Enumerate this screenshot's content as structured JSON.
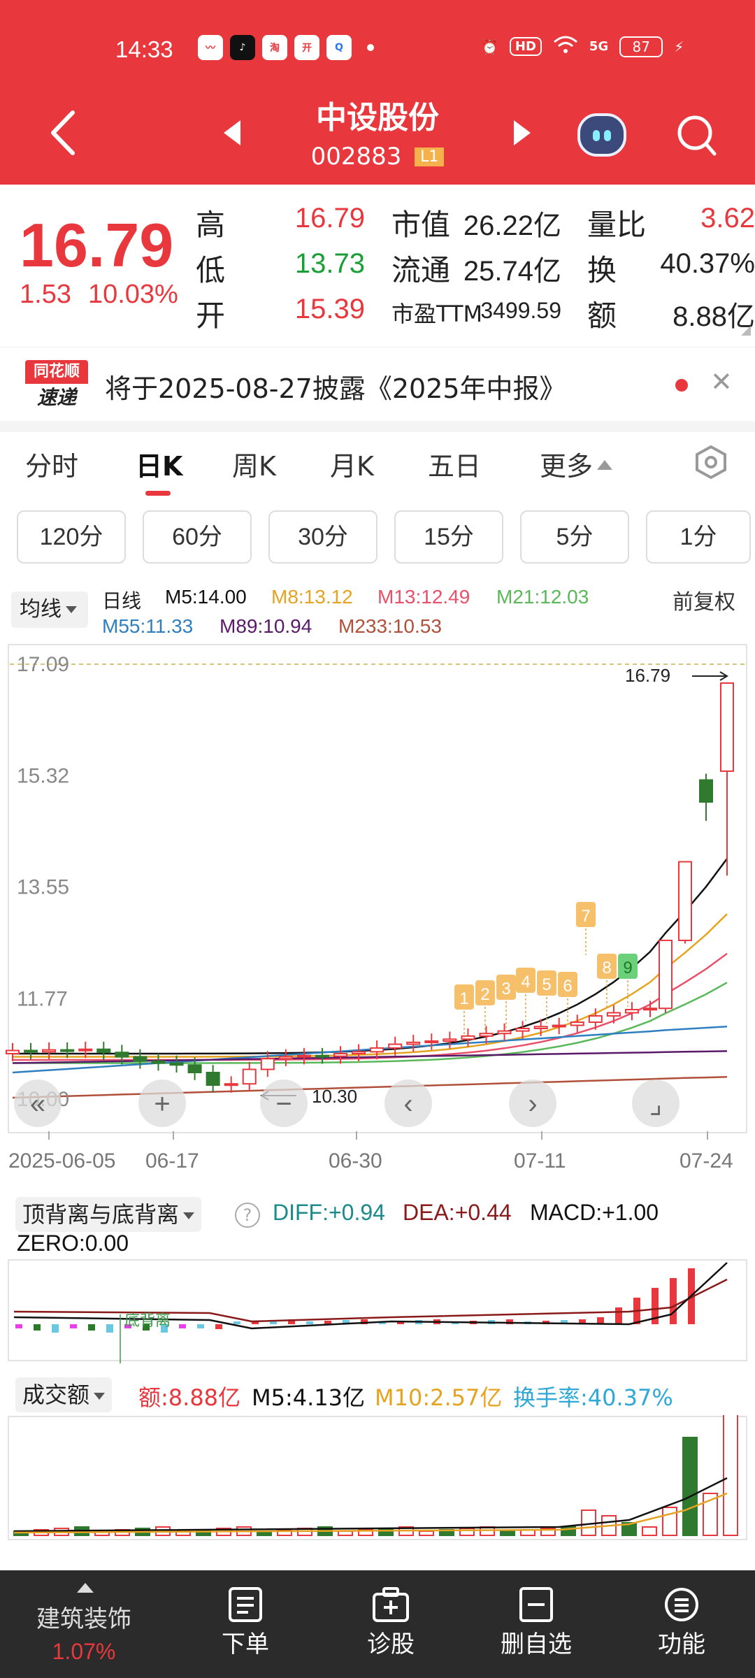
{
  "status_bar": {
    "time": "14:33",
    "app_icons": [
      "stock-chart-icon",
      "tiktok-icon",
      "taobao-icon",
      "kaipan-icon",
      "search-app-icon"
    ],
    "hd_label": "HD",
    "network": "5G",
    "battery": "87"
  },
  "header": {
    "stock_name": "中设股份",
    "stock_code": "002883",
    "level_badge": "L1"
  },
  "quote": {
    "price": "16.79",
    "change": "1.53",
    "change_pct": "10.03%",
    "rows": [
      {
        "l1": "高",
        "v1": "16.79",
        "l2": "市值",
        "v2": "26.22亿",
        "l3": "量比",
        "v3": "3.62"
      },
      {
        "l1": "低",
        "v1": "13.73",
        "l2": "流通",
        "v2": "25.74亿",
        "l3": "换",
        "v3": "40.37%"
      },
      {
        "l1": "开",
        "v1": "15.39",
        "l2": "市盈TTM",
        "v2": "3499.59",
        "l3": "额",
        "v3": "8.88亿"
      }
    ]
  },
  "banner": {
    "logo_top": "同花顺",
    "logo_bottom": "速递",
    "text": "将于2025-08-27披露《2025年中报》"
  },
  "tabs": [
    "分时",
    "日K",
    "周K",
    "月K",
    "五日",
    "更多"
  ],
  "active_tab": "日K",
  "minute_buttons": [
    "120分",
    "60分",
    "30分",
    "15分",
    "5分",
    "1分"
  ],
  "ma_legend": {
    "selector": "均线",
    "period": "日线",
    "fq": "前复权",
    "items": [
      {
        "label": "M5:14.00",
        "color": "#111111"
      },
      {
        "label": "M8:13.12",
        "color": "#e6a321"
      },
      {
        "label": "M13:12.49",
        "color": "#e8506a"
      },
      {
        "label": "M21:12.03",
        "color": "#5ab85a"
      },
      {
        "label": "M55:11.33",
        "color": "#2f7fc0"
      },
      {
        "label": "M89:10.94",
        "color": "#5a1a6a"
      },
      {
        "label": "M233:10.53",
        "color": "#b0503a"
      }
    ]
  },
  "kline": {
    "price_labels": [
      "17.09",
      "15.32",
      "13.55",
      "11.77",
      "10.00"
    ],
    "high_marker": "16.79",
    "low_marker": "10.30",
    "date_labels": [
      "2025-06-05",
      "06-17",
      "06-30",
      "07-11",
      "07-24"
    ],
    "signal_tags": [
      "1",
      "2",
      "3",
      "4",
      "5",
      "6",
      "7",
      "8",
      "9"
    ],
    "signal_colors": {
      "orange": "#f6c06a",
      "green": "#6ccf7a"
    }
  },
  "chart_data": [
    {
      "type": "candlestick",
      "title": "日K",
      "ylim": [
        10.0,
        17.09
      ],
      "y_ticks": [
        17.09,
        15.32,
        13.55,
        11.77,
        10.0
      ],
      "x_ticks": [
        "2025-06-05",
        "06-17",
        "06-30",
        "07-11",
        "07-24"
      ],
      "series": [
        {
          "name": "K线",
          "last_bar": {
            "date": "07-24",
            "open": 15.39,
            "high": 16.79,
            "low": 13.73,
            "close": 16.79
          }
        },
        {
          "name": "M5",
          "last": 14.0
        },
        {
          "name": "M8",
          "last": 13.12
        },
        {
          "name": "M13",
          "last": 12.49
        },
        {
          "name": "M21",
          "last": 12.03
        },
        {
          "name": "M55",
          "last": 11.33
        },
        {
          "name": "M89",
          "last": 10.94
        },
        {
          "name": "M233",
          "last": 10.53
        }
      ],
      "annotations": {
        "period_high": 16.79,
        "period_low": 10.3
      }
    },
    {
      "type": "bar",
      "title": "顶背离与底背离",
      "indicators": {
        "DIFF": "+0.94",
        "DEA": "+0.44",
        "MACD": "+1.00",
        "ZERO": "0.00"
      }
    },
    {
      "type": "bar",
      "title": "成交额",
      "indicators": {
        "额": "8.88亿",
        "M5": "4.13亿",
        "M10": "2.57亿",
        "换手率": "40.37%"
      }
    }
  ],
  "macd": {
    "selector": "顶背离与底背离",
    "diff": "DIFF:+0.94",
    "dea": "DEA:+0.44",
    "macd": "MACD:+1.00",
    "zero": "ZERO:0.00",
    "bottom_div_label": "底背离"
  },
  "volume": {
    "selector": "成交额",
    "amount": "额:8.88亿",
    "m5": "M5:4.13亿",
    "m10": "M10:2.57亿",
    "turnover": "换手率:40.37%"
  },
  "bottom_bar": {
    "sector_name": "建筑装饰",
    "sector_pct": "1.07%",
    "items": [
      "下单",
      "诊股",
      "删自选",
      "功能"
    ]
  }
}
